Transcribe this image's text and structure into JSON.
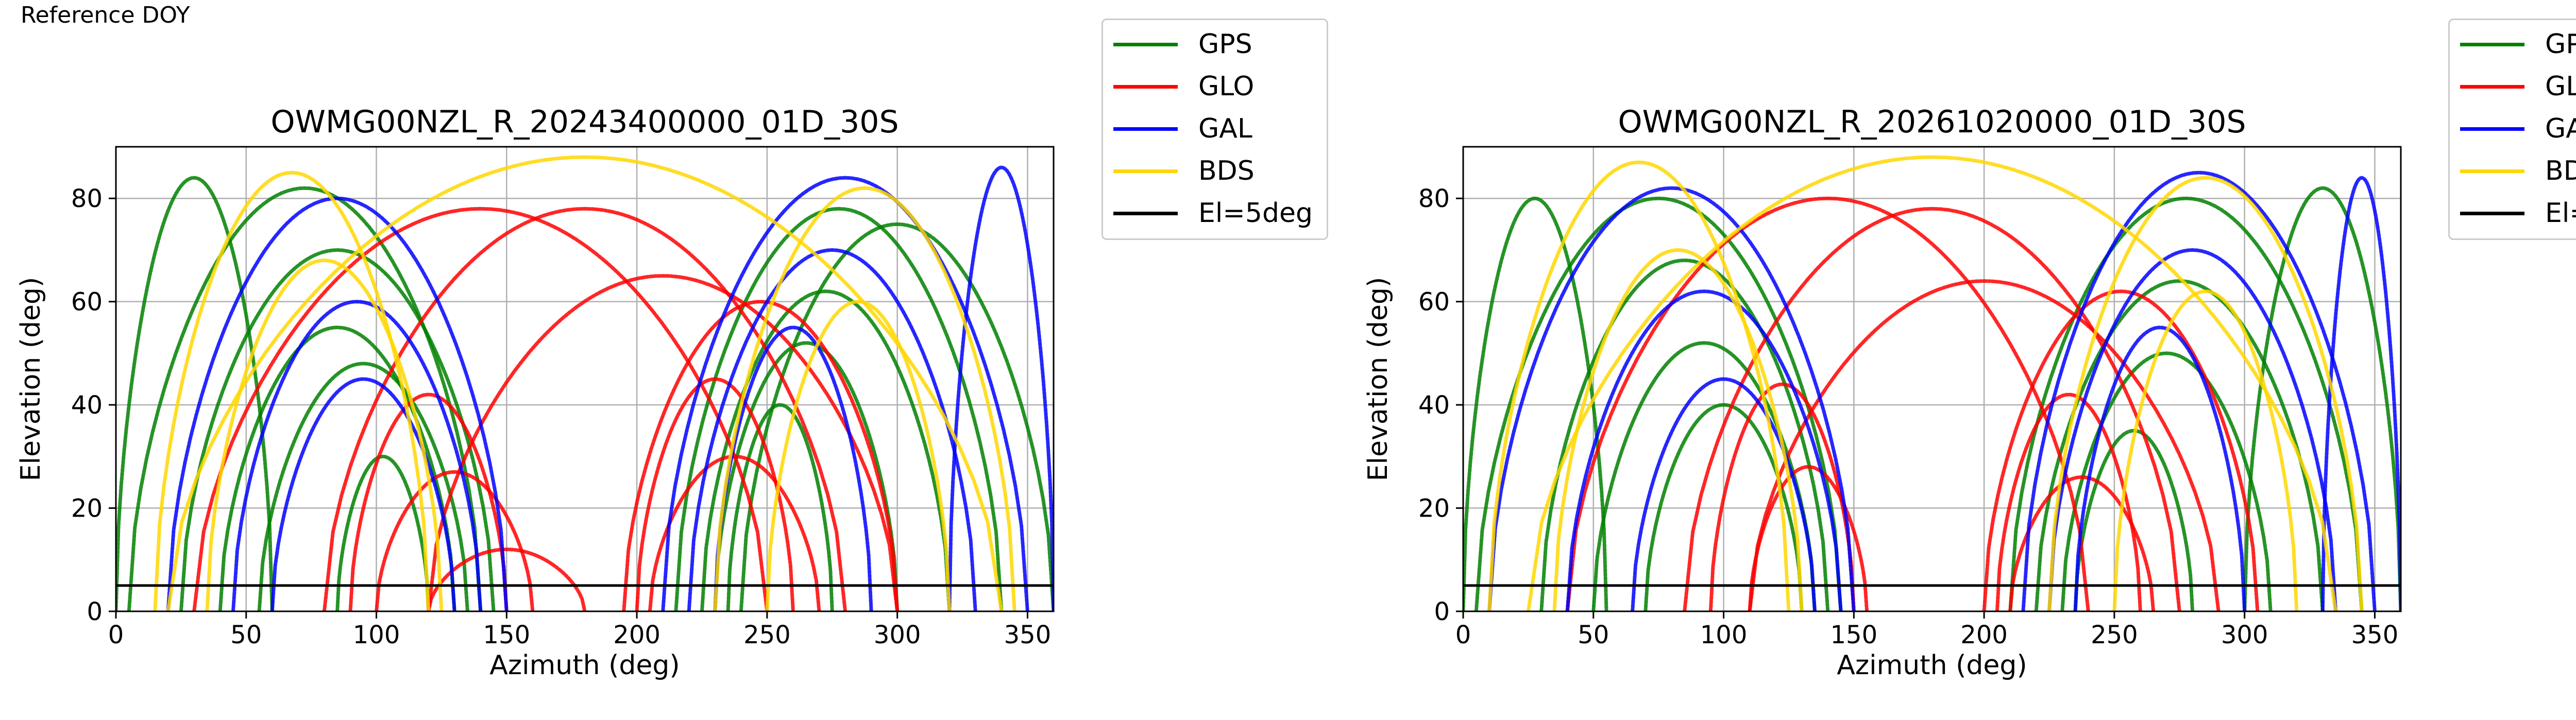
{
  "header": {
    "reference_label": "Reference DOY"
  },
  "colors": {
    "GPS": "#008000",
    "GLO": "#ff0000",
    "GAL": "#0000ff",
    "BDS": "#ffd700",
    "El=5deg": "#000000"
  },
  "legend": {
    "entries": [
      {
        "label": "GPS",
        "color": "#008000"
      },
      {
        "label": "GLO",
        "color": "#ff0000"
      },
      {
        "label": "GAL",
        "color": "#0000ff"
      },
      {
        "label": "BDS",
        "color": "#ffd700"
      },
      {
        "label": "El=5deg",
        "color": "#000000"
      }
    ]
  },
  "chart_data": [
    {
      "type": "scatter",
      "title": "OWMG00NZL_R_20243400000_01D_30S",
      "xlabel": "Azimuth (deg)",
      "ylabel": "Elevation (deg)",
      "xlim": [
        0,
        360
      ],
      "ylim": [
        0,
        90
      ],
      "xticks": [
        0,
        50,
        100,
        150,
        200,
        250,
        300,
        350
      ],
      "yticks": [
        0,
        20,
        40,
        60,
        80
      ],
      "grid": true,
      "elevation_mask_deg": 5,
      "series": [
        {
          "name": "GPS",
          "color": "#008000",
          "arcs": [
            {
              "start": 5,
              "end": 140,
              "peak": 82
            },
            {
              "start": 25,
              "end": 145,
              "peak": 70
            },
            {
              "start": 40,
              "end": 130,
              "peak": 55
            },
            {
              "start": 55,
              "end": 135,
              "peak": 48
            },
            {
              "start": 85,
              "end": 120,
              "peak": 30
            },
            {
              "start": 215,
              "end": 340,
              "peak": 78
            },
            {
              "start": 225,
              "end": 320,
              "peak": 62
            },
            {
              "start": 230,
              "end": 300,
              "peak": 52
            },
            {
              "start": 235,
              "end": 275,
              "peak": 40
            },
            {
              "start": 0,
              "end": 60,
              "peak": 84
            },
            {
              "start": 240,
              "end": 360,
              "peak": 75
            }
          ]
        },
        {
          "name": "GLO",
          "color": "#ff0000",
          "arcs": [
            {
              "start": 80,
              "end": 280,
              "peak": 78
            },
            {
              "start": 120,
              "end": 300,
              "peak": 65
            },
            {
              "start": 90,
              "end": 150,
              "peak": 42
            },
            {
              "start": 100,
              "end": 160,
              "peak": 27
            },
            {
              "start": 120,
              "end": 180,
              "peak": 12
            },
            {
              "start": 200,
              "end": 260,
              "peak": 45
            },
            {
              "start": 205,
              "end": 270,
              "peak": 30
            },
            {
              "start": 30,
              "end": 250,
              "peak": 78
            },
            {
              "start": 195,
              "end": 300,
              "peak": 60
            }
          ]
        },
        {
          "name": "GAL",
          "color": "#0000ff",
          "arcs": [
            {
              "start": 20,
              "end": 150,
              "peak": 80
            },
            {
              "start": 45,
              "end": 140,
              "peak": 60
            },
            {
              "start": 60,
              "end": 130,
              "peak": 45
            },
            {
              "start": 210,
              "end": 350,
              "peak": 84
            },
            {
              "start": 220,
              "end": 330,
              "peak": 70
            },
            {
              "start": 230,
              "end": 290,
              "peak": 55
            },
            {
              "start": 320,
              "end": 360,
              "peak": 86
            }
          ]
        },
        {
          "name": "BDS",
          "color": "#ffd700",
          "arcs": [
            {
              "start": 15,
              "end": 120,
              "peak": 85
            },
            {
              "start": 35,
              "end": 125,
              "peak": 68
            },
            {
              "start": 230,
              "end": 345,
              "peak": 82
            },
            {
              "start": 250,
              "end": 320,
              "peak": 60
            },
            {
              "start": 20,
              "end": 340,
              "peak": 88
            }
          ]
        }
      ]
    },
    {
      "type": "scatter",
      "title": "OWMG00NZL_R_20261020000_01D_30S",
      "xlabel": "Azimuth (deg)",
      "ylabel": "Elevation (deg)",
      "xlim": [
        0,
        360
      ],
      "ylim": [
        0,
        90
      ],
      "xticks": [
        0,
        50,
        100,
        150,
        200,
        250,
        300,
        350
      ],
      "yticks": [
        0,
        20,
        40,
        60,
        80
      ],
      "grid": true,
      "elevation_mask_deg": 5,
      "series": [
        {
          "name": "GPS",
          "color": "#008000",
          "arcs": [
            {
              "start": 5,
              "end": 145,
              "peak": 80
            },
            {
              "start": 30,
              "end": 140,
              "peak": 68
            },
            {
              "start": 50,
              "end": 135,
              "peak": 52
            },
            {
              "start": 70,
              "end": 130,
              "peak": 40
            },
            {
              "start": 210,
              "end": 345,
              "peak": 80
            },
            {
              "start": 220,
              "end": 330,
              "peak": 64
            },
            {
              "start": 230,
              "end": 310,
              "peak": 50
            },
            {
              "start": 235,
              "end": 280,
              "peak": 35
            },
            {
              "start": 0,
              "end": 55,
              "peak": 80
            },
            {
              "start": 300,
              "end": 360,
              "peak": 82
            }
          ]
        },
        {
          "name": "GLO",
          "color": "#ff0000",
          "arcs": [
            {
              "start": 85,
              "end": 275,
              "peak": 78
            },
            {
              "start": 110,
              "end": 290,
              "peak": 64
            },
            {
              "start": 95,
              "end": 150,
              "peak": 44
            },
            {
              "start": 110,
              "end": 155,
              "peak": 28
            },
            {
              "start": 205,
              "end": 260,
              "peak": 42
            },
            {
              "start": 210,
              "end": 265,
              "peak": 26
            },
            {
              "start": 40,
              "end": 240,
              "peak": 80
            },
            {
              "start": 200,
              "end": 305,
              "peak": 62
            }
          ]
        },
        {
          "name": "GAL",
          "color": "#0000ff",
          "arcs": [
            {
              "start": 10,
              "end": 150,
              "peak": 82
            },
            {
              "start": 40,
              "end": 145,
              "peak": 62
            },
            {
              "start": 65,
              "end": 135,
              "peak": 45
            },
            {
              "start": 215,
              "end": 350,
              "peak": 85
            },
            {
              "start": 225,
              "end": 335,
              "peak": 70
            },
            {
              "start": 235,
              "end": 300,
              "peak": 55
            },
            {
              "start": 330,
              "end": 360,
              "peak": 84
            }
          ]
        },
        {
          "name": "BDS",
          "color": "#ffd700",
          "arcs": [
            {
              "start": 10,
              "end": 125,
              "peak": 87
            },
            {
              "start": 35,
              "end": 130,
              "peak": 70
            },
            {
              "start": 225,
              "end": 345,
              "peak": 84
            },
            {
              "start": 250,
              "end": 320,
              "peak": 62
            },
            {
              "start": 25,
              "end": 335,
              "peak": 88
            }
          ]
        }
      ]
    }
  ]
}
